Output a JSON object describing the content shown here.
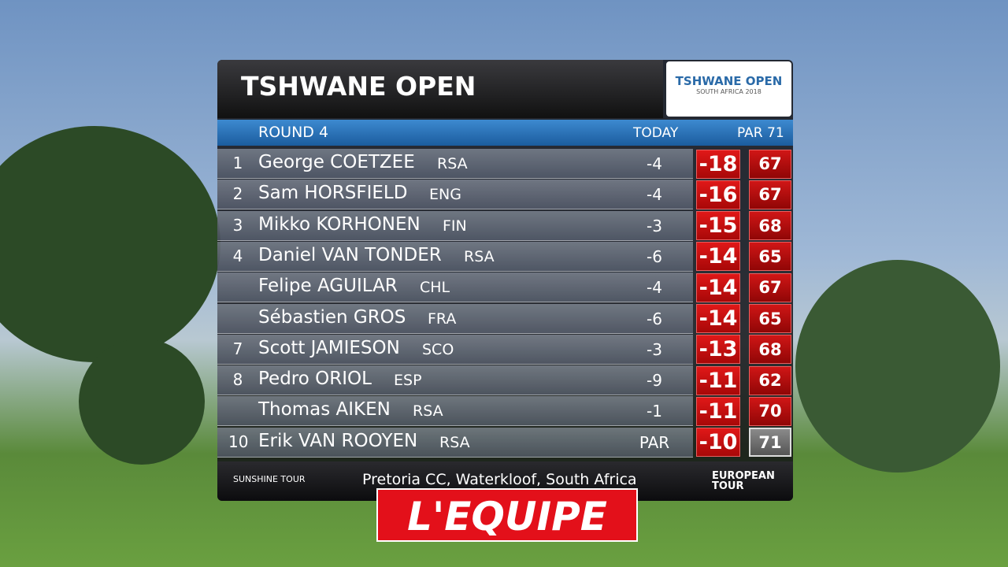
{
  "header": {
    "title": "TSHWANE OPEN",
    "logo": {
      "name": "TSHWANE OPEN",
      "sub": "SOUTH AFRICA 2018"
    }
  },
  "columns": {
    "round": "ROUND 4",
    "today": "TODAY",
    "par": "PAR 71"
  },
  "rows": [
    {
      "pos": "1",
      "name": "George COETZEE",
      "country": "RSA",
      "today": "-4",
      "total": "-18",
      "score": "67"
    },
    {
      "pos": "2",
      "name": "Sam HORSFIELD",
      "country": "ENG",
      "today": "-4",
      "total": "-16",
      "score": "67"
    },
    {
      "pos": "3",
      "name": "Mikko KORHONEN",
      "country": "FIN",
      "today": "-3",
      "total": "-15",
      "score": "68"
    },
    {
      "pos": "4",
      "name": "Daniel VAN TONDER",
      "country": "RSA",
      "today": "-6",
      "total": "-14",
      "score": "65"
    },
    {
      "pos": null,
      "name": "Felipe AGUILAR",
      "country": "CHL",
      "today": "-4",
      "total": "-14",
      "score": "67"
    },
    {
      "pos": null,
      "name": "Sébastien GROS",
      "country": "FRA",
      "today": "-6",
      "total": "-14",
      "score": "65"
    },
    {
      "pos": "7",
      "name": "Scott JAMIESON",
      "country": "SCO",
      "today": "-3",
      "total": "-13",
      "score": "68"
    },
    {
      "pos": "8",
      "name": "Pedro ORIOL",
      "country": "ESP",
      "today": "-9",
      "total": "-11",
      "score": "62"
    },
    {
      "pos": null,
      "name": "Thomas AIKEN",
      "country": "RSA",
      "today": "-1",
      "total": "-11",
      "score": "70"
    },
    {
      "pos": "10",
      "name": "Erik VAN ROOYEN",
      "country": "RSA",
      "today": "PAR",
      "total": "-10",
      "score": "71"
    }
  ],
  "footer": {
    "left": "SUNSHINE TOUR",
    "venue": "Pretoria CC, Waterkloof, South Africa",
    "right": "EUROPEAN TOUR"
  },
  "brand": "L'EQUIPE"
}
